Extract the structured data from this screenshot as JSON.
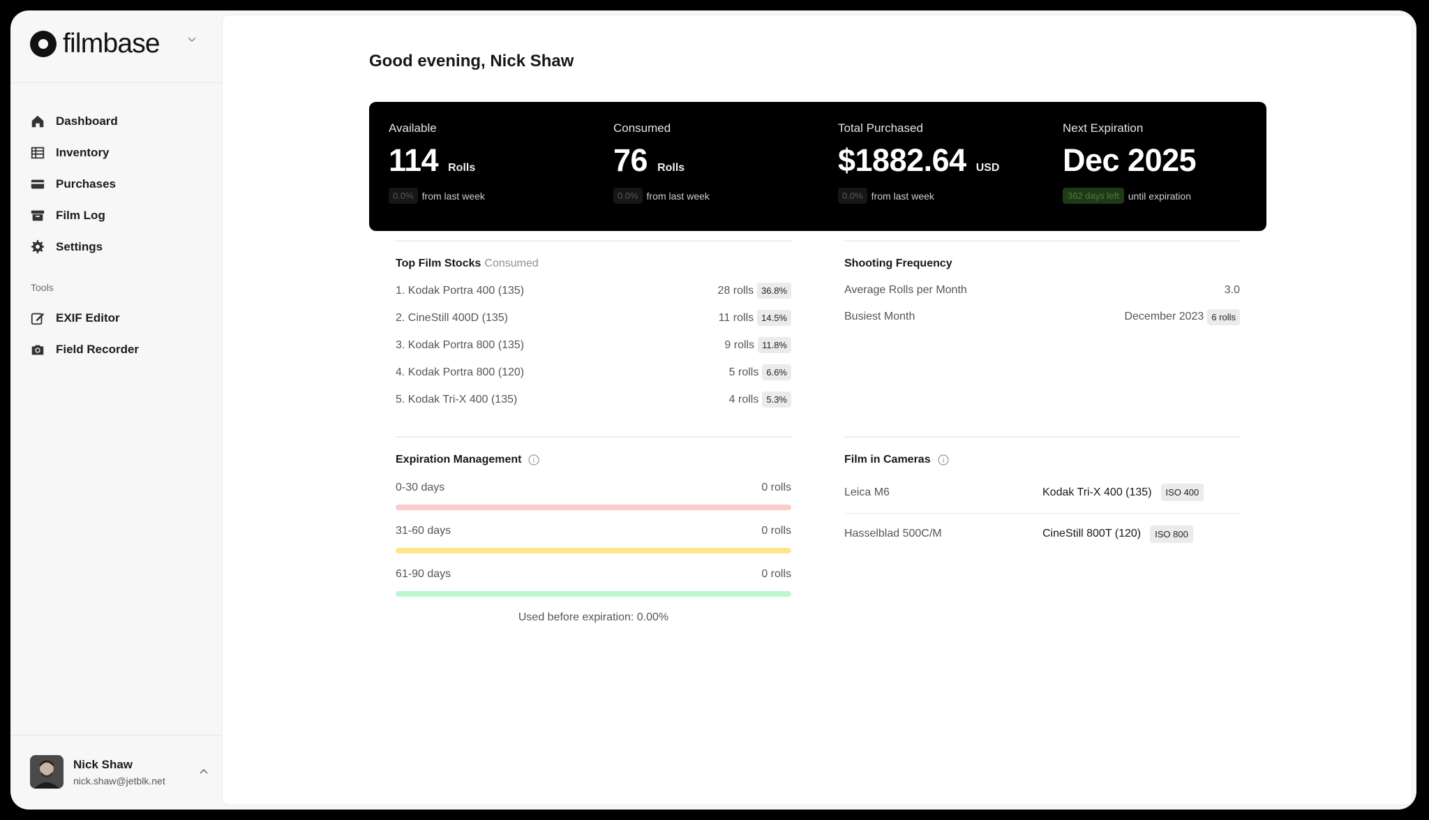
{
  "brand": {
    "name": "filmbase"
  },
  "nav": [
    {
      "label": "Dashboard",
      "icon": "home-icon"
    },
    {
      "label": "Inventory",
      "icon": "grid-icon"
    },
    {
      "label": "Purchases",
      "icon": "credit-card-icon"
    },
    {
      "label": "Film Log",
      "icon": "archive-icon"
    },
    {
      "label": "Settings",
      "icon": "gear-icon"
    }
  ],
  "tools": {
    "label": "Tools",
    "items": [
      {
        "label": "EXIF Editor",
        "icon": "edit-icon"
      },
      {
        "label": "Field Recorder",
        "icon": "camera-icon"
      }
    ]
  },
  "user": {
    "name": "Nick Shaw",
    "email": "nick.shaw@jetblk.net"
  },
  "greeting": "Good evening, Nick Shaw",
  "stats": [
    {
      "label": "Available",
      "value": "114",
      "unit": "Rolls",
      "pill": "0.0%",
      "foot": "from last week"
    },
    {
      "label": "Consumed",
      "value": "76",
      "unit": "Rolls",
      "pill": "0.0%",
      "foot": "from last week"
    },
    {
      "label": "Total Purchased",
      "value": "$1882.64",
      "unit": "USD",
      "pill": "0.0%",
      "foot": "from last week"
    },
    {
      "label": "Next Expiration",
      "value": "Dec 2025",
      "unit": "",
      "pill": "362 days left",
      "foot": "until expiration"
    }
  ],
  "top_stocks": {
    "title": "Top Film Stocks",
    "subtitle": "Consumed",
    "items": [
      {
        "name": "1. Kodak Portra 400 (135)",
        "rolls": "28 rolls",
        "pct": "36.8%"
      },
      {
        "name": "2. CineStill 400D (135)",
        "rolls": "11 rolls",
        "pct": "14.5%"
      },
      {
        "name": "3. Kodak Portra 800 (135)",
        "rolls": "9 rolls",
        "pct": "11.8%"
      },
      {
        "name": "4. Kodak Portra 800 (120)",
        "rolls": "5 rolls",
        "pct": "6.6%"
      },
      {
        "name": "5. Kodak Tri-X 400 (135)",
        "rolls": "4 rolls",
        "pct": "5.3%"
      }
    ]
  },
  "frequency": {
    "title": "Shooting Frequency",
    "avg_label": "Average Rolls per Month",
    "avg_value": "3.0",
    "busiest_label": "Busiest Month",
    "busiest_value": "December 2023",
    "busiest_badge": "6 rolls"
  },
  "expiration": {
    "title": "Expiration Management",
    "ranges": [
      {
        "label": "0-30 days",
        "value": "0 rolls",
        "color": "#fecaca"
      },
      {
        "label": "31-60 days",
        "value": "0 rolls",
        "color": "#fde68a"
      },
      {
        "label": "61-90 days",
        "value": "0 rolls",
        "color": "#bbf7d0"
      }
    ],
    "footer": "Used before expiration: 0.00%"
  },
  "cameras": {
    "title": "Film in Cameras",
    "items": [
      {
        "camera": "Leica M6",
        "film": "Kodak Tri-X 400 (135)",
        "iso": "ISO 400"
      },
      {
        "camera": "Hasselblad 500C/M",
        "film": "CineStill 800T (120)",
        "iso": "ISO 800"
      }
    ]
  }
}
